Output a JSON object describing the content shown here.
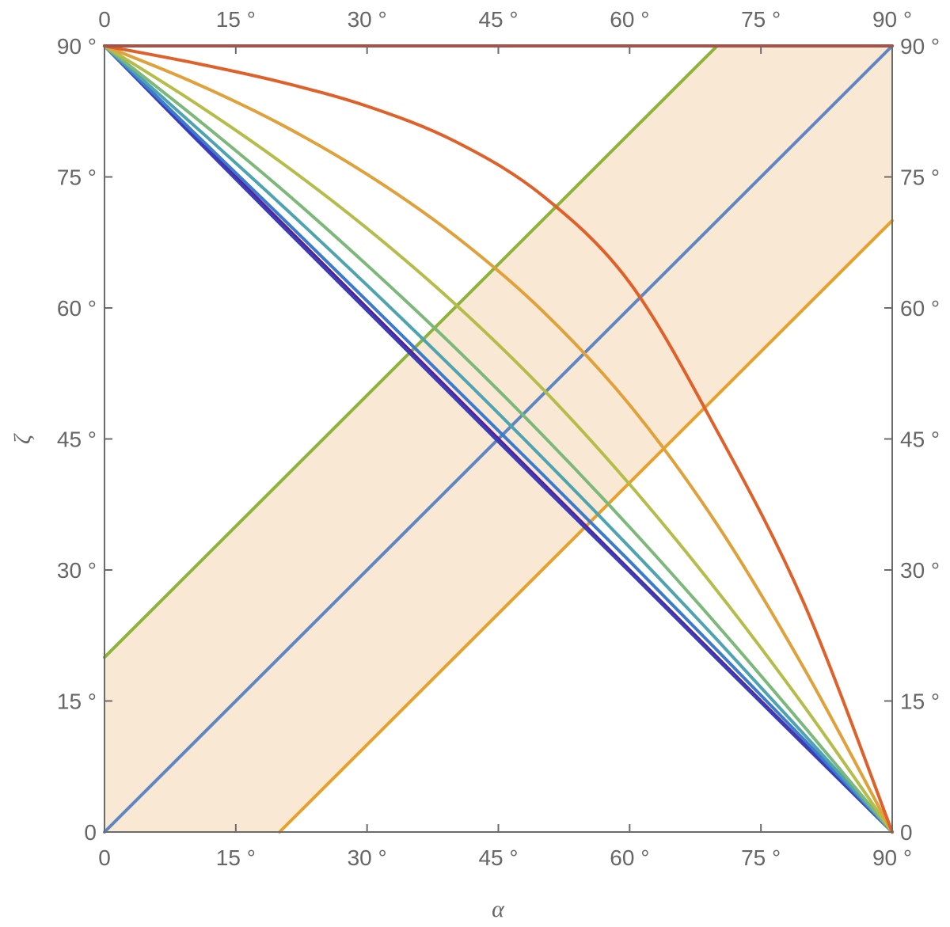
{
  "chart_data": {
    "type": "line",
    "xlabel": "α",
    "ylabel": "ζ",
    "xlim": [
      0,
      90
    ],
    "ylim": [
      0,
      90
    ],
    "grid": false,
    "legend": "none",
    "x_ticks": [
      {
        "value": 0,
        "label": "0"
      },
      {
        "value": 15,
        "label": "15 °"
      },
      {
        "value": 30,
        "label": "30 °"
      },
      {
        "value": 45,
        "label": "45 °"
      },
      {
        "value": 60,
        "label": "60 °"
      },
      {
        "value": 75,
        "label": "75 °"
      },
      {
        "value": 90,
        "label": "90 °"
      }
    ],
    "y_ticks": [
      {
        "value": 0,
        "label": "0"
      },
      {
        "value": 15,
        "label": "15 °"
      },
      {
        "value": 30,
        "label": "30 °"
      },
      {
        "value": 45,
        "label": "45 °"
      },
      {
        "value": 60,
        "label": "60 °"
      },
      {
        "value": 75,
        "label": "75 °"
      },
      {
        "value": 90,
        "label": "90 °"
      }
    ],
    "shaded_band": {
      "color": "#f9e9d4",
      "upper_edge": [
        [
          0,
          20
        ],
        [
          70,
          90
        ],
        [
          90,
          90
        ]
      ],
      "lower_edge": [
        [
          0,
          0
        ],
        [
          20,
          0
        ],
        [
          90,
          70
        ]
      ]
    },
    "lines": [
      {
        "color": "#8db33a",
        "points": [
          [
            0,
            20
          ],
          [
            70,
            90
          ]
        ]
      },
      {
        "color": "#5f86c4",
        "points": [
          [
            0,
            0
          ],
          [
            90,
            90
          ]
        ]
      },
      {
        "color": "#e7a12b",
        "points": [
          [
            20,
            0
          ],
          [
            90,
            70
          ]
        ]
      }
    ],
    "curve_family": {
      "series": [
        {
          "color": "#5a1e8c",
          "points": [
            [
              0,
              90
            ],
            [
              10,
              80
            ],
            [
              20,
              70
            ],
            [
              30,
              60
            ],
            [
              40,
              50
            ],
            [
              50,
              40
            ],
            [
              60,
              30
            ],
            [
              70,
              20
            ],
            [
              80,
              10
            ],
            [
              90,
              0
            ]
          ]
        },
        {
          "color": "#3b3db8",
          "points": [
            [
              0,
              90
            ],
            [
              10,
              79.8
            ],
            [
              20,
              69.7
            ],
            [
              30,
              59.7
            ],
            [
              40,
              49.7
            ],
            [
              50,
              39.7
            ],
            [
              60,
              29.8
            ],
            [
              70,
              19.8
            ],
            [
              80,
              9.9
            ],
            [
              90,
              0
            ]
          ]
        },
        {
          "color": "#3a7bd0",
          "points": [
            [
              0,
              90
            ],
            [
              10,
              80.3
            ],
            [
              20,
              70.6
            ],
            [
              30,
              60.8
            ],
            [
              40,
              50.9
            ],
            [
              50,
              41
            ],
            [
              60,
              31
            ],
            [
              70,
              20.8
            ],
            [
              80,
              10.5
            ],
            [
              90,
              0
            ]
          ]
        },
        {
          "color": "#4da3b0",
          "points": [
            [
              0,
              90
            ],
            [
              10,
              81.1
            ],
            [
              20,
              72
            ],
            [
              30,
              62.6
            ],
            [
              40,
              52.9
            ],
            [
              50,
              42.9
            ],
            [
              60,
              32.6
            ],
            [
              70,
              22
            ],
            [
              80,
              11.1
            ],
            [
              90,
              0
            ]
          ]
        },
        {
          "color": "#7cb87a",
          "points": [
            [
              0,
              90
            ],
            [
              10,
              82.1
            ],
            [
              20,
              73.8
            ],
            [
              30,
              64.9
            ],
            [
              40,
              55.5
            ],
            [
              50,
              45.5
            ],
            [
              60,
              34.9
            ],
            [
              70,
              23.7
            ],
            [
              80,
              12
            ],
            [
              90,
              0
            ]
          ]
        },
        {
          "color": "#b5bd4a",
          "points": [
            [
              0,
              90
            ],
            [
              10,
              83.7
            ],
            [
              20,
              76.8
            ],
            [
              30,
              69.1
            ],
            [
              40,
              60.5
            ],
            [
              50,
              50.8
            ],
            [
              60,
              39.8
            ],
            [
              70,
              27.6
            ],
            [
              80,
              14.3
            ],
            [
              90,
              0
            ]
          ]
        },
        {
          "color": "#e0a03a",
          "points": [
            [
              0,
              90
            ],
            [
              10,
              85.9
            ],
            [
              20,
              81.1
            ],
            [
              30,
              75.3
            ],
            [
              40,
              68.3
            ],
            [
              50,
              59.7
            ],
            [
              60,
              48.9
            ],
            [
              70,
              35.2
            ],
            [
              80,
              18.6
            ],
            [
              90,
              0
            ]
          ]
        },
        {
          "color": "#e0602a",
          "points": [
            [
              0,
              90
            ],
            [
              10,
              88.1
            ],
            [
              20,
              85.9
            ],
            [
              30,
              83.1
            ],
            [
              40,
              79.1
            ],
            [
              50,
              72.9
            ],
            [
              60,
              62.9
            ],
            [
              70,
              45.9
            ],
            [
              80,
              26
            ],
            [
              90,
              0
            ]
          ]
        },
        {
          "color": "#d83a2a",
          "points": [
            [
              0,
              90
            ],
            [
              90,
              90
            ]
          ]
        }
      ]
    }
  }
}
